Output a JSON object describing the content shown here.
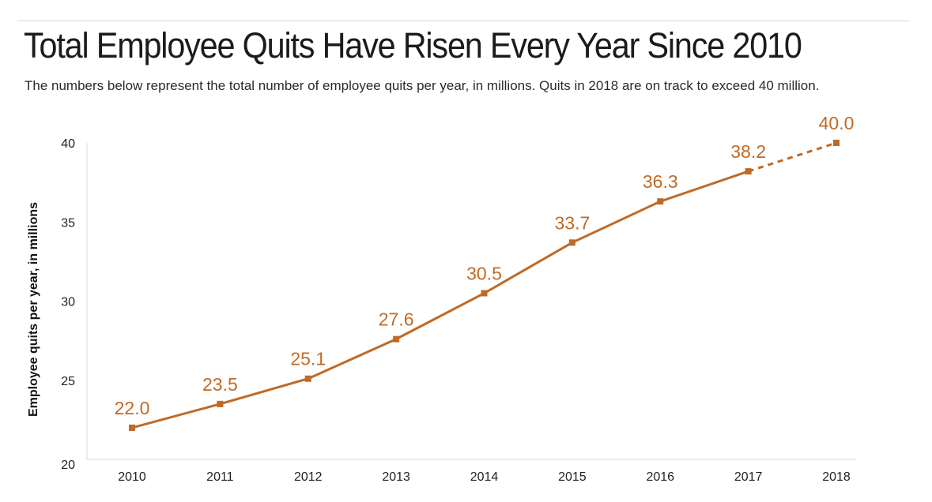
{
  "header": {
    "title": "Total Employee Quits Have Risen Every Year Since 2010",
    "subtitle": "The numbers below represent the total number of employee quits per year, in millions. Quits in 2018 are on track to exceed 40 million."
  },
  "colors": {
    "series": "#c06a26",
    "axis": "#d9d9d9",
    "text": "#222222"
  },
  "chart_data": {
    "type": "line",
    "title": "Total Employee Quits Have Risen Every Year Since 2010",
    "subtitle": "The numbers below represent the total number of employee quits per year, in millions. Quits in 2018 are on track to exceed 40 million.",
    "xlabel": "",
    "ylabel": "Employee quits per year, in millions",
    "x": [
      "2010",
      "2011",
      "2012",
      "2013",
      "2014",
      "2015",
      "2016",
      "2017",
      "2018"
    ],
    "values": [
      22.0,
      23.5,
      25.1,
      27.6,
      30.5,
      33.7,
      36.3,
      38.2,
      40.0
    ],
    "value_labels": [
      "22.0",
      "23.5",
      "25.1",
      "27.6",
      "30.5",
      "33.7",
      "36.3",
      "38.2",
      "40.0"
    ],
    "projected_from_index": 7,
    "ylim": [
      20,
      40
    ],
    "yticks": [
      20,
      25,
      30,
      35,
      40
    ],
    "grid": false,
    "legend": "none"
  }
}
